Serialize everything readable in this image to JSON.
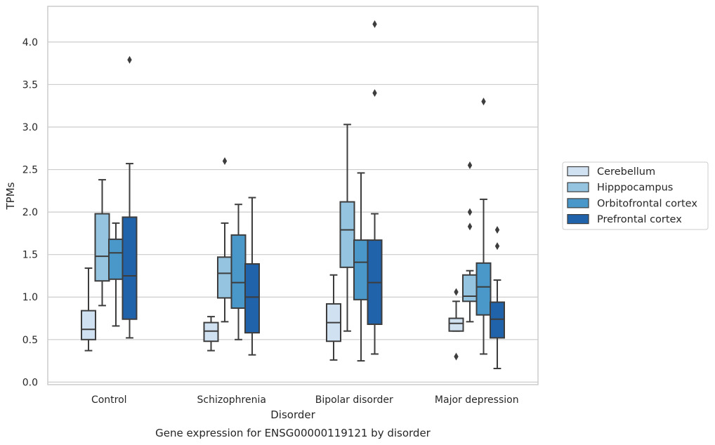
{
  "chart_data": {
    "type": "boxplot",
    "title": "Gene expression for ENSG00000119121 by disorder",
    "xlabel": "Disorder",
    "ylabel": "TPMs",
    "ylim": [
      -0.03,
      4.42
    ],
    "yticks": [
      0.0,
      0.5,
      1.0,
      1.5,
      2.0,
      2.5,
      3.0,
      3.5,
      4.0
    ],
    "ytick_labels": [
      "0.0",
      "0.5",
      "1.0",
      "1.5",
      "2.0",
      "2.5",
      "3.0",
      "3.5",
      "4.0"
    ],
    "grid": "horizontal",
    "legend_placement": "center-right outside",
    "categories": [
      "Control",
      "Schizophrenia",
      "Bipolar disorder",
      "Major depression"
    ],
    "series": [
      {
        "name": "Cerebellum",
        "color": "#d0e1f2",
        "boxes": [
          {
            "whislo": 0.37,
            "q1": 0.5,
            "med": 0.62,
            "q3": 0.84,
            "whishi": 1.34,
            "fliers": []
          },
          {
            "whislo": 0.37,
            "q1": 0.48,
            "med": 0.6,
            "q3": 0.7,
            "whishi": 0.77,
            "fliers": []
          },
          {
            "whislo": 0.26,
            "q1": 0.48,
            "med": 0.7,
            "q3": 0.92,
            "whishi": 1.26,
            "fliers": []
          },
          {
            "whislo": 0.6,
            "q1": 0.6,
            "med": 0.69,
            "q3": 0.75,
            "whishi": 0.95,
            "fliers": [
              0.3,
              1.06
            ]
          }
        ]
      },
      {
        "name": "Hipppocampus",
        "color": "#94c4df",
        "boxes": [
          {
            "whislo": 0.9,
            "q1": 1.19,
            "med": 1.48,
            "q3": 1.98,
            "whishi": 2.38,
            "fliers": []
          },
          {
            "whislo": 0.71,
            "q1": 0.99,
            "med": 1.28,
            "q3": 1.47,
            "whishi": 1.87,
            "fliers": [
              2.6
            ]
          },
          {
            "whislo": 0.6,
            "q1": 1.35,
            "med": 1.79,
            "q3": 2.12,
            "whishi": 3.03,
            "fliers": []
          },
          {
            "whislo": 0.71,
            "q1": 0.95,
            "med": 1.01,
            "q3": 1.26,
            "whishi": 1.31,
            "fliers": [
              1.83,
              2.0,
              2.55
            ]
          }
        ]
      },
      {
        "name": "Orbitofrontal cortex",
        "color": "#4a98c9",
        "boxes": [
          {
            "whislo": 0.66,
            "q1": 1.21,
            "med": 1.52,
            "q3": 1.68,
            "whishi": 1.87,
            "fliers": []
          },
          {
            "whislo": 0.5,
            "q1": 0.87,
            "med": 1.17,
            "q3": 1.73,
            "whishi": 2.09,
            "fliers": []
          },
          {
            "whislo": 0.25,
            "q1": 0.97,
            "med": 1.41,
            "q3": 1.67,
            "whishi": 2.46,
            "fliers": []
          },
          {
            "whislo": 0.33,
            "q1": 0.79,
            "med": 1.12,
            "q3": 1.4,
            "whishi": 2.15,
            "fliers": [
              3.3
            ]
          }
        ]
      },
      {
        "name": "Prefrontal cortex",
        "color": "#2163aa",
        "boxes": [
          {
            "whislo": 0.52,
            "q1": 0.74,
            "med": 1.25,
            "q3": 1.94,
            "whishi": 2.57,
            "fliers": [
              3.79
            ]
          },
          {
            "whislo": 0.32,
            "q1": 0.58,
            "med": 1.0,
            "q3": 1.39,
            "whishi": 2.17,
            "fliers": []
          },
          {
            "whislo": 0.33,
            "q1": 0.68,
            "med": 1.17,
            "q3": 1.67,
            "whishi": 1.98,
            "fliers": [
              3.4,
              4.21
            ]
          },
          {
            "whislo": 0.16,
            "q1": 0.52,
            "med": 0.74,
            "q3": 0.94,
            "whishi": 1.2,
            "fliers": [
              1.6,
              1.79
            ]
          }
        ]
      }
    ]
  }
}
